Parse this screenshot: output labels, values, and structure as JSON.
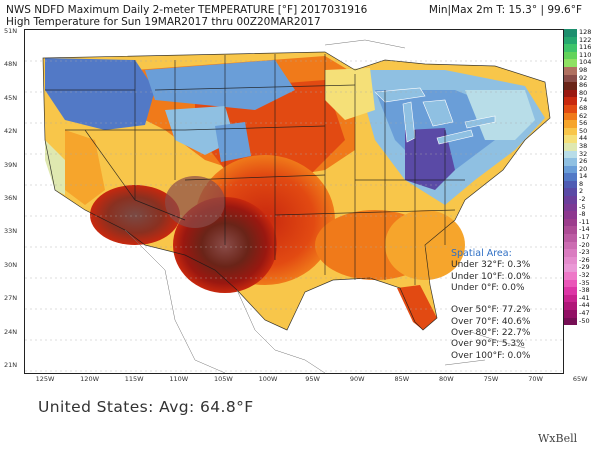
{
  "header": {
    "line1": "NWS NDFD Maximum Daily 2-meter TEMPERATURE [°F]  2017031916",
    "line2": "High Temperature for Sun 19MAR2017 thru 00Z20MAR2017",
    "minmax": "Min|Max 2m T: 15.3°  |  99.6°F"
  },
  "axes": {
    "lat_labels": [
      "51N",
      "48N",
      "45N",
      "42N",
      "39N",
      "36N",
      "33N",
      "30N",
      "27N",
      "24N",
      "21N"
    ],
    "lon_labels": [
      "125W",
      "120W",
      "115W",
      "110W",
      "105W",
      "100W",
      "95W",
      "90W",
      "85W",
      "80W",
      "75W",
      "70W",
      "65W"
    ]
  },
  "colorbar": {
    "labels": [
      "128",
      "122",
      "116",
      "110",
      "104",
      "98",
      "92",
      "86",
      "80",
      "74",
      "68",
      "62",
      "56",
      "50",
      "44",
      "38",
      "32",
      "26",
      "20",
      "14",
      "8",
      "2",
      "-2",
      "-5",
      "-8",
      "-11",
      "-14",
      "-17",
      "-20",
      "-23",
      "-26",
      "-29",
      "-32",
      "-35",
      "-38",
      "-41",
      "-44",
      "-47",
      "-50"
    ],
    "colors": [
      "#1e8f6e",
      "#26a86f",
      "#3ec46a",
      "#63d35a",
      "#8fe062",
      "#b07060",
      "#8a4c48",
      "#6a2418",
      "#9a1810",
      "#c8280e",
      "#e24a12",
      "#f07a1a",
      "#f6a52c",
      "#f8c64a",
      "#f5e078",
      "#dfe8b0",
      "#b8dde8",
      "#8fc0e2",
      "#6a9ed8",
      "#5279c6",
      "#4f5cb4",
      "#5a4aa6",
      "#6b3f9c",
      "#7c3a95",
      "#8d388f",
      "#9c3d8c",
      "#ad4c95",
      "#bc5ca3",
      "#cc6db2",
      "#da7cc0",
      "#e48bcc",
      "#ea98d6",
      "#ee78c8",
      "#ea56b8",
      "#dd36a6",
      "#c9238f",
      "#b01678",
      "#921165",
      "#760f55"
    ]
  },
  "spatial_area": {
    "title": "Spatial Area:",
    "rows": [
      "Under 32°F: 0.3%",
      "Under 10°F: 0.0%",
      "Under 0°F: 0.0%",
      "",
      "Over 50°F: 77.2%",
      "Over 70°F: 40.6%",
      "Over 80°F: 22.7%",
      "Over 90°F: 5.3%",
      "Over 100°F: 0.0%"
    ]
  },
  "average": "United States: Avg: 64.8°F",
  "logo": "WxBell"
}
